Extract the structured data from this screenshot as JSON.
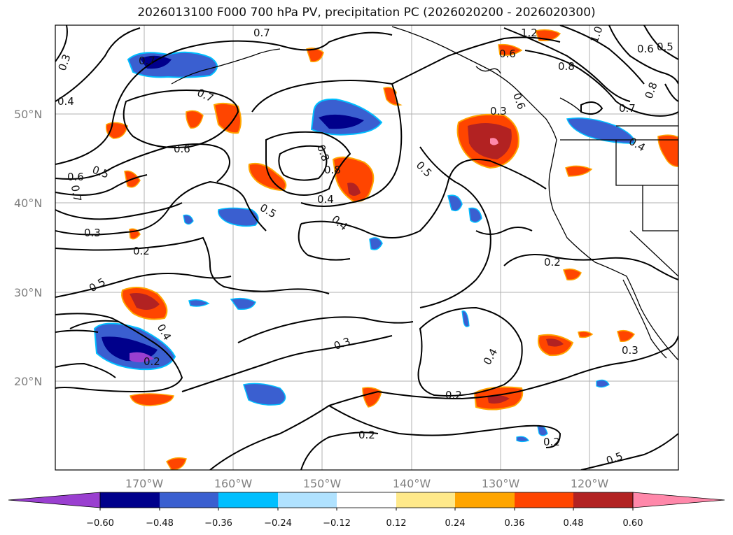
{
  "title": "2026013100 F000 700 hPa PV, precipitation PC (2026020200 - 2026020300)",
  "lat_labels": [
    "50°N",
    "40°N",
    "30°N",
    "20°N"
  ],
  "lon_labels": [
    "170°W",
    "160°W",
    "150°W",
    "140°W",
    "130°W",
    "120°W"
  ],
  "colorbar": {
    "ticks": [
      "−0.60",
      "−0.48",
      "−0.36",
      "−0.24",
      "−0.12",
      "0.12",
      "0.24",
      "0.36",
      "0.48",
      "0.60"
    ],
    "colors": [
      "#9a3fd0",
      "#00008b",
      "#3a5fd0",
      "#00bfff",
      "#b0e2ff",
      "#ffffff",
      "#ffe98a",
      "#ffa500",
      "#ff4500",
      "#b22222",
      "#ff88aa"
    ]
  },
  "contour_labels": [
    "0.7",
    "1.2",
    "1.0",
    "0.6",
    "0.5",
    "0.3",
    "0.8",
    "0.4",
    "0.6",
    "0.7",
    "0.8",
    "0.7",
    "0.3",
    "0.8",
    "0.6",
    "0.5",
    "0.6",
    "0.7",
    "0.5",
    "0.5",
    "0.4",
    "0.4",
    "0.3",
    "0.2",
    "0.2",
    "0.5",
    "0.4",
    "0.2",
    "0.3",
    "0.3",
    "0.4",
    "0.2",
    "0.2",
    "0.2",
    "0.5",
    "0.6",
    "0.7",
    "0.8",
    "0.4"
  ]
}
